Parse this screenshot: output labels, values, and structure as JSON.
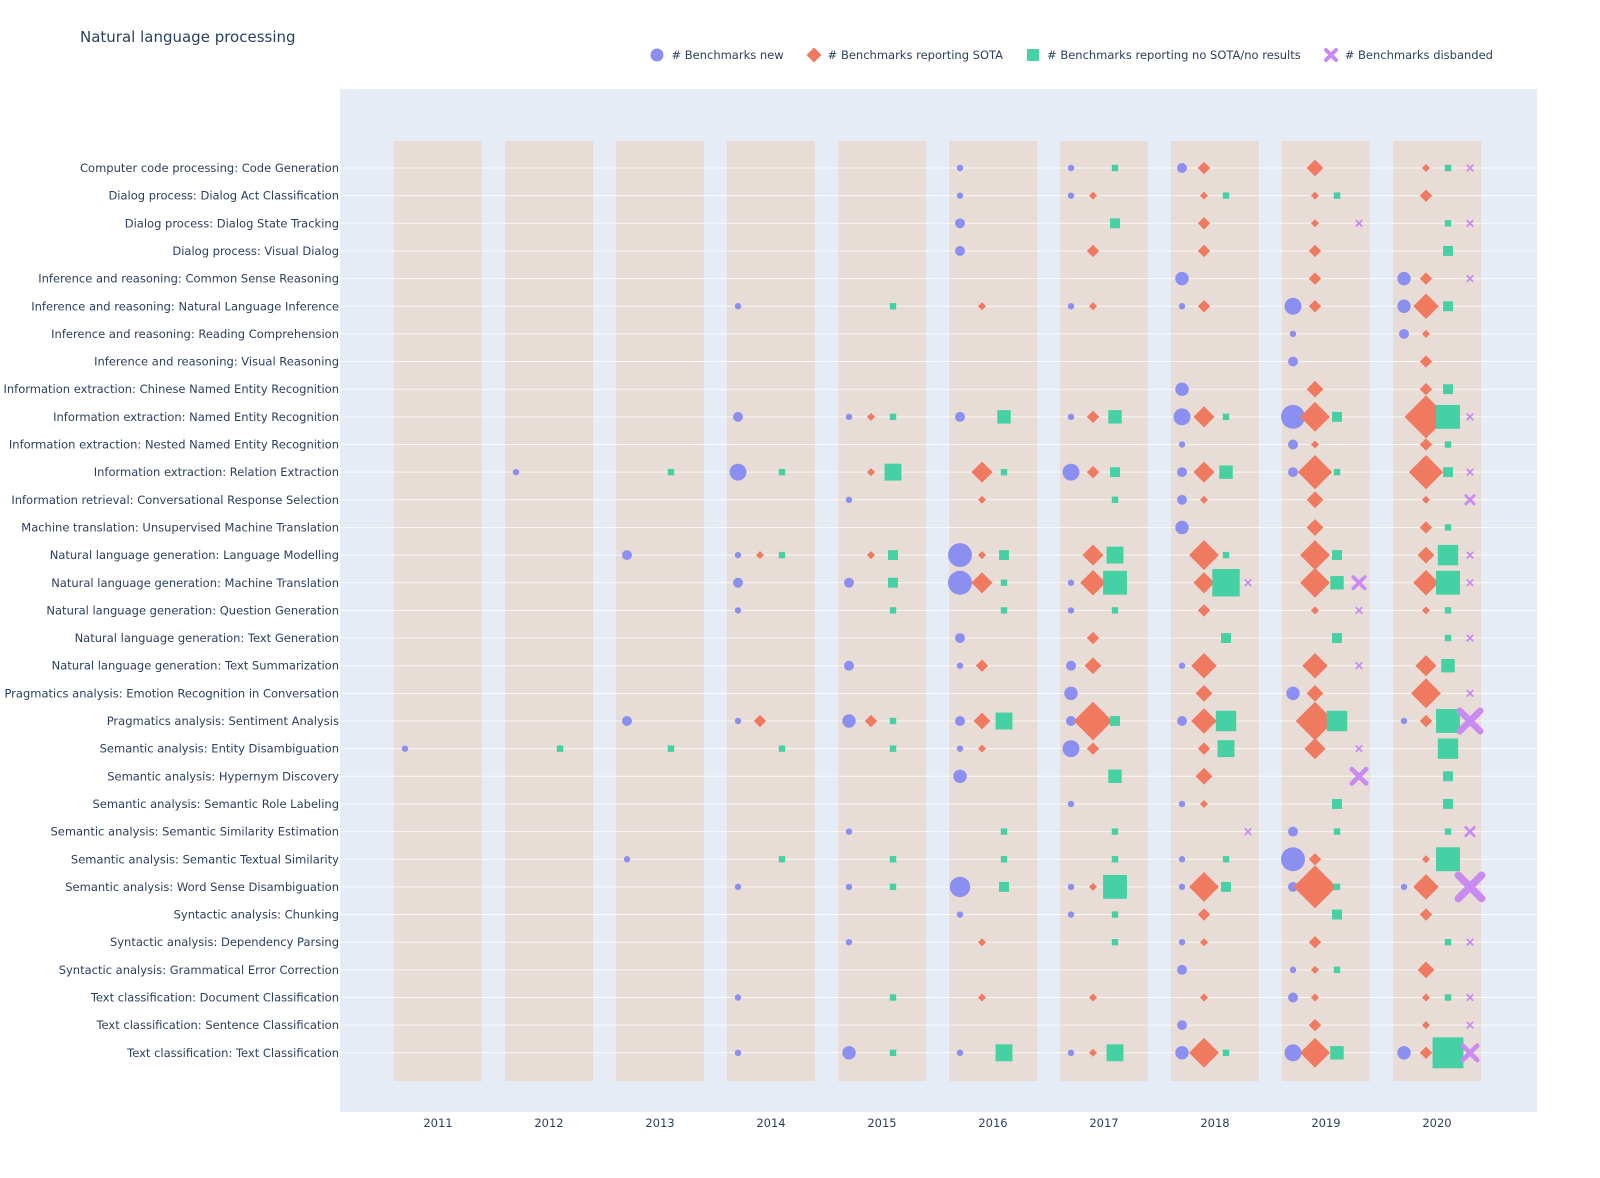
{
  "chart_data": {
    "type": "scatter",
    "title": "Natural language processing",
    "years": [
      "2011",
      "2012",
      "2013",
      "2014",
      "2015",
      "2016",
      "2017",
      "2018",
      "2019",
      "2020"
    ],
    "series": [
      {
        "key": "new",
        "name": "# Benchmarks new",
        "color": "#8a8ff0",
        "symbol": "circle"
      },
      {
        "key": "sota",
        "name": "# Benchmarks reporting SOTA",
        "color": "#ef7a5f",
        "symbol": "diamond"
      },
      {
        "key": "nosota",
        "name": "# Benchmarks reporting no SOTA/no results",
        "color": "#45d1a4",
        "symbol": "square"
      },
      {
        "key": "disb",
        "name": "# Benchmarks disbanded",
        "color": "#c98af2",
        "symbol": "x"
      }
    ],
    "categories": [
      "Computer code processing: Code Generation",
      "Dialog process: Dialog Act Classification",
      "Dialog process: Dialog State Tracking",
      "Dialog process: Visual Dialog",
      "Inference and reasoning: Common Sense Reasoning",
      "Inference and reasoning: Natural Language Inference",
      "Inference and reasoning: Reading Comprehension",
      "Inference and reasoning: Visual Reasoning",
      "Information extraction: Chinese Named Entity Recognition",
      "Information extraction: Named Entity Recognition",
      "Information extraction: Nested Named Entity Recognition",
      "Information extraction: Relation Extraction",
      "Information retrieval: Conversational Response Selection",
      "Machine translation: Unsupervised Machine Translation",
      "Natural language generation: Language Modelling",
      "Natural language generation: Machine Translation",
      "Natural language generation: Question Generation",
      "Natural language generation: Text Generation",
      "Natural language generation: Text Summarization",
      "Pragmatics analysis: Emotion Recognition in Conversation",
      "Pragmatics analysis: Sentiment Analysis",
      "Semantic analysis: Entity Disambiguation",
      "Semantic analysis: Hypernym Discovery",
      "Semantic analysis: Semantic Role Labeling",
      "Semantic analysis: Semantic Similarity Estimation",
      "Semantic analysis: Semantic Textual Similarity",
      "Semantic analysis: Word Sense Disambiguation",
      "Syntactic analysis: Chunking",
      "Syntactic analysis: Dependency Parsing",
      "Syntactic analysis: Grammatical Error Correction",
      "Text classification: Document Classification",
      "Text classification: Sentence Classification",
      "Text classification: Text Classification"
    ],
    "rows": [
      {
        "2016": [
          1,
          0,
          0,
          0
        ],
        "2017": [
          1,
          0,
          1,
          0
        ],
        "2018": [
          2,
          2,
          0,
          0
        ],
        "2019": [
          0,
          3,
          0,
          0
        ],
        "2020": [
          0,
          1,
          1,
          1
        ]
      },
      {
        "2016": [
          1,
          0,
          0,
          0
        ],
        "2017": [
          1,
          1,
          0,
          0
        ],
        "2018": [
          0,
          1,
          1,
          0
        ],
        "2019": [
          0,
          1,
          1,
          0
        ],
        "2020": [
          0,
          2,
          0,
          0
        ]
      },
      {
        "2016": [
          2,
          0,
          0,
          0
        ],
        "2017": [
          0,
          0,
          2,
          0
        ],
        "2018": [
          0,
          2,
          0,
          0
        ],
        "2019": [
          0,
          1,
          0,
          1
        ],
        "2020": [
          0,
          0,
          1,
          1
        ]
      },
      {
        "2016": [
          2,
          0,
          0,
          0
        ],
        "2017": [
          0,
          2,
          0,
          0
        ],
        "2018": [
          0,
          2,
          0,
          0
        ],
        "2019": [
          0,
          2,
          0,
          0
        ],
        "2020": [
          0,
          0,
          2,
          0
        ]
      },
      {
        "2018": [
          3,
          0,
          0,
          0
        ],
        "2019": [
          0,
          2,
          0,
          0
        ],
        "2020": [
          3,
          2,
          0,
          1
        ]
      },
      {
        "2014": [
          1,
          0,
          0,
          0
        ],
        "2015": [
          0,
          0,
          1,
          0
        ],
        "2016": [
          0,
          1,
          0,
          0
        ],
        "2017": [
          1,
          1,
          0,
          0
        ],
        "2018": [
          1,
          2,
          0,
          0
        ],
        "2019": [
          4,
          2,
          0,
          0
        ],
        "2020": [
          3,
          5,
          2,
          0
        ]
      },
      {
        "2019": [
          1,
          0,
          0,
          0
        ],
        "2020": [
          2,
          1,
          0,
          0
        ]
      },
      {
        "2019": [
          2,
          0,
          0,
          0
        ],
        "2020": [
          0,
          2,
          0,
          0
        ]
      },
      {
        "2018": [
          3,
          0,
          0,
          0
        ],
        "2019": [
          0,
          3,
          0,
          0
        ],
        "2020": [
          0,
          2,
          2,
          0
        ]
      },
      {
        "2014": [
          2,
          0,
          0,
          0
        ],
        "2015": [
          1,
          1,
          1,
          0
        ],
        "2016": [
          2,
          0,
          3,
          0
        ],
        "2017": [
          1,
          2,
          3,
          0
        ],
        "2018": [
          4,
          4,
          1,
          0
        ],
        "2019": [
          6,
          6,
          2,
          0
        ],
        "2020": [
          0,
          9,
          6,
          1
        ]
      },
      {
        "2018": [
          1,
          0,
          0,
          0
        ],
        "2019": [
          2,
          1,
          0,
          0
        ],
        "2020": [
          0,
          2,
          1,
          0
        ]
      },
      {
        "2012": [
          1,
          0,
          0,
          0
        ],
        "2013": [
          0,
          0,
          1,
          0
        ],
        "2014": [
          4,
          0,
          1,
          0
        ],
        "2015": [
          0,
          1,
          4,
          0
        ],
        "2016": [
          0,
          4,
          1,
          0
        ],
        "2017": [
          4,
          2,
          2,
          0
        ],
        "2018": [
          2,
          4,
          3,
          0
        ],
        "2019": [
          2,
          7,
          1,
          0
        ],
        "2020": [
          0,
          7,
          2,
          1
        ]
      },
      {
        "2015": [
          1,
          0,
          0,
          0
        ],
        "2016": [
          0,
          1,
          0,
          0
        ],
        "2017": [
          0,
          0,
          1,
          0
        ],
        "2018": [
          2,
          1,
          0,
          0
        ],
        "2019": [
          0,
          3,
          0,
          0
        ],
        "2020": [
          0,
          1,
          0,
          2
        ]
      },
      {
        "2018": [
          3,
          0,
          0,
          0
        ],
        "2019": [
          0,
          3,
          0,
          0
        ],
        "2020": [
          0,
          2,
          1,
          0
        ]
      },
      {
        "2013": [
          2,
          0,
          0,
          0
        ],
        "2014": [
          1,
          1,
          1,
          0
        ],
        "2015": [
          0,
          1,
          2,
          0
        ],
        "2016": [
          6,
          1,
          2,
          0
        ],
        "2017": [
          0,
          4,
          4,
          0
        ],
        "2018": [
          0,
          6,
          1,
          0
        ],
        "2019": [
          0,
          6,
          2,
          0
        ],
        "2020": [
          0,
          3,
          5,
          1
        ]
      },
      {
        "2014": [
          2,
          0,
          0,
          0
        ],
        "2015": [
          2,
          0,
          2,
          0
        ],
        "2016": [
          6,
          4,
          1,
          0
        ],
        "2017": [
          1,
          5,
          6,
          0
        ],
        "2018": [
          0,
          4,
          7,
          1
        ],
        "2019": [
          0,
          6,
          3,
          3
        ],
        "2020": [
          0,
          5,
          6,
          1
        ]
      },
      {
        "2014": [
          1,
          0,
          0,
          0
        ],
        "2015": [
          0,
          0,
          1,
          0
        ],
        "2016": [
          0,
          0,
          1,
          0
        ],
        "2017": [
          1,
          0,
          1,
          0
        ],
        "2018": [
          0,
          2,
          0,
          0
        ],
        "2019": [
          0,
          1,
          0,
          1
        ],
        "2020": [
          0,
          1,
          1,
          0
        ]
      },
      {
        "2016": [
          2,
          0,
          0,
          0
        ],
        "2017": [
          0,
          2,
          0,
          0
        ],
        "2018": [
          0,
          0,
          2,
          0
        ],
        "2019": [
          0,
          0,
          2,
          0
        ],
        "2020": [
          0,
          0,
          1,
          1
        ]
      },
      {
        "2015": [
          2,
          0,
          0,
          0
        ],
        "2016": [
          1,
          2,
          0,
          0
        ],
        "2017": [
          2,
          3,
          0,
          0
        ],
        "2018": [
          1,
          5,
          0,
          0
        ],
        "2019": [
          0,
          5,
          0,
          1
        ],
        "2020": [
          0,
          4,
          3,
          0
        ]
      },
      {
        "2017": [
          3,
          0,
          0,
          0
        ],
        "2018": [
          0,
          3,
          0,
          0
        ],
        "2019": [
          3,
          3,
          0,
          0
        ],
        "2020": [
          0,
          6,
          0,
          1
        ]
      },
      {
        "2013": [
          2,
          0,
          0,
          0
        ],
        "2014": [
          1,
          2,
          0,
          0
        ],
        "2015": [
          3,
          2,
          1,
          0
        ],
        "2016": [
          2,
          3,
          4,
          0
        ],
        "2017": [
          2,
          8,
          2,
          0
        ],
        "2018": [
          2,
          5,
          5,
          0
        ],
        "2019": [
          0,
          8,
          5,
          0
        ],
        "2020": [
          1,
          2,
          6,
          6
        ]
      },
      {
        "2011": [
          1,
          0,
          0,
          0
        ],
        "2012": [
          0,
          0,
          1,
          0
        ],
        "2013": [
          0,
          0,
          1,
          0
        ],
        "2014": [
          0,
          0,
          1,
          0
        ],
        "2015": [
          0,
          0,
          1,
          0
        ],
        "2016": [
          1,
          1,
          0,
          0
        ],
        "2017": [
          4,
          2,
          0,
          0
        ],
        "2018": [
          0,
          2,
          4,
          0
        ],
        "2019": [
          0,
          4,
          0,
          1
        ],
        "2020": [
          0,
          0,
          5,
          0
        ]
      },
      {
        "2016": [
          3,
          0,
          0,
          0
        ],
        "2017": [
          0,
          0,
          3,
          0
        ],
        "2018": [
          0,
          3,
          0,
          0
        ],
        "2019": [
          0,
          0,
          0,
          4
        ],
        "2020": [
          0,
          0,
          2,
          0
        ]
      },
      {
        "2017": [
          1,
          0,
          0,
          0
        ],
        "2018": [
          1,
          1,
          0,
          0
        ],
        "2019": [
          0,
          0,
          2,
          0
        ],
        "2020": [
          0,
          0,
          2,
          0
        ]
      },
      {
        "2015": [
          1,
          0,
          0,
          0
        ],
        "2016": [
          0,
          0,
          1,
          0
        ],
        "2017": [
          0,
          0,
          1,
          0
        ],
        "2018": [
          0,
          0,
          0,
          1
        ],
        "2019": [
          2,
          0,
          1,
          0
        ],
        "2020": [
          0,
          0,
          1,
          2
        ]
      },
      {
        "2013": [
          1,
          0,
          0,
          0
        ],
        "2014": [
          0,
          0,
          1,
          0
        ],
        "2015": [
          0,
          0,
          1,
          0
        ],
        "2016": [
          0,
          0,
          1,
          0
        ],
        "2017": [
          0,
          0,
          1,
          0
        ],
        "2018": [
          1,
          0,
          1,
          0
        ],
        "2019": [
          6,
          2,
          0,
          0
        ],
        "2020": [
          0,
          1,
          6,
          0
        ]
      },
      {
        "2014": [
          1,
          0,
          0,
          0
        ],
        "2015": [
          1,
          0,
          1,
          0
        ],
        "2016": [
          5,
          0,
          2,
          0
        ],
        "2017": [
          1,
          1,
          6,
          0
        ],
        "2018": [
          1,
          6,
          2,
          0
        ],
        "2019": [
          2,
          9,
          1,
          0
        ],
        "2020": [
          1,
          5,
          0,
          7
        ]
      },
      {
        "2016": [
          1,
          0,
          0,
          0
        ],
        "2017": [
          1,
          0,
          1,
          0
        ],
        "2018": [
          0,
          2,
          0,
          0
        ],
        "2019": [
          0,
          0,
          2,
          0
        ],
        "2020": [
          0,
          2,
          0,
          0
        ]
      },
      {
        "2015": [
          1,
          0,
          0,
          0
        ],
        "2016": [
          0,
          1,
          0,
          0
        ],
        "2017": [
          0,
          0,
          1,
          0
        ],
        "2018": [
          1,
          1,
          0,
          0
        ],
        "2019": [
          0,
          2,
          0,
          0
        ],
        "2020": [
          0,
          0,
          1,
          1
        ]
      },
      {
        "2018": [
          2,
          0,
          0,
          0
        ],
        "2019": [
          1,
          1,
          1,
          0
        ],
        "2020": [
          0,
          3,
          0,
          0
        ]
      },
      {
        "2014": [
          1,
          0,
          0,
          0
        ],
        "2015": [
          0,
          0,
          1,
          0
        ],
        "2016": [
          0,
          1,
          0,
          0
        ],
        "2017": [
          0,
          1,
          0,
          0
        ],
        "2018": [
          0,
          1,
          0,
          0
        ],
        "2019": [
          2,
          1,
          0,
          0
        ],
        "2020": [
          0,
          1,
          1,
          1
        ]
      },
      {
        "2018": [
          2,
          0,
          0,
          0
        ],
        "2019": [
          0,
          2,
          0,
          0
        ],
        "2020": [
          0,
          1,
          0,
          1
        ]
      },
      {
        "2014": [
          1,
          0,
          0,
          0
        ],
        "2015": [
          3,
          0,
          1,
          0
        ],
        "2016": [
          1,
          0,
          4,
          0
        ],
        "2017": [
          1,
          1,
          4,
          0
        ],
        "2018": [
          3,
          6,
          1,
          0
        ],
        "2019": [
          4,
          6,
          3,
          0
        ],
        "2020": [
          3,
          2,
          8,
          4
        ]
      }
    ]
  }
}
